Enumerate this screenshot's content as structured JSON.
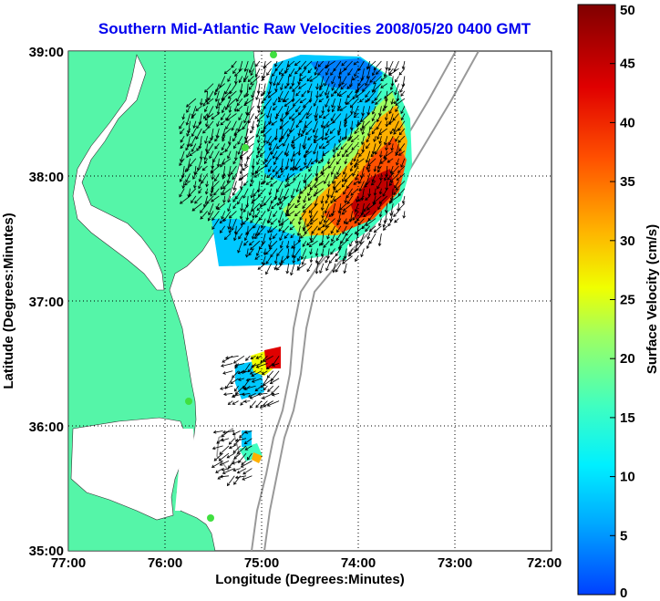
{
  "title": "Southern Mid-Atlantic Raw Velocities 2008/05/20 0400 GMT",
  "x_axis": {
    "label": "Longitude (Degrees:Minutes)",
    "ticks": [
      "77:00",
      "76:00",
      "75:00",
      "74:00",
      "73:00",
      "72:00"
    ]
  },
  "y_axis": {
    "label": "Latitude (Degrees:Minutes)",
    "ticks": [
      "39:00",
      "38:00",
      "37:00",
      "36:00",
      "35:00"
    ]
  },
  "colorbar": {
    "label": "Surface Velocity (cm/s)",
    "ticks": [
      "50",
      "45",
      "40",
      "35",
      "30",
      "25",
      "20",
      "15",
      "10",
      "5",
      "0"
    ],
    "min": 0,
    "max": 50
  },
  "map": {
    "lon_range": [
      -77,
      -72
    ],
    "lat_range": [
      35,
      39
    ],
    "land_color": "#55f5a8",
    "grid": "dotted",
    "regions": [
      {
        "name": "north",
        "lon": [
          -75.8,
          -73.5
        ],
        "lat": [
          37.3,
          38.95
        ]
      },
      {
        "name": "middle",
        "lon": [
          -75.3,
          -74.8
        ],
        "lat": [
          36.2,
          36.6
        ]
      },
      {
        "name": "south",
        "lon": [
          -75.4,
          -75.1
        ],
        "lat": [
          35.6,
          36.0
        ]
      }
    ]
  },
  "colors": {
    "title": "#0000ee",
    "land": "#55f5a8",
    "isobath": "#999999"
  }
}
